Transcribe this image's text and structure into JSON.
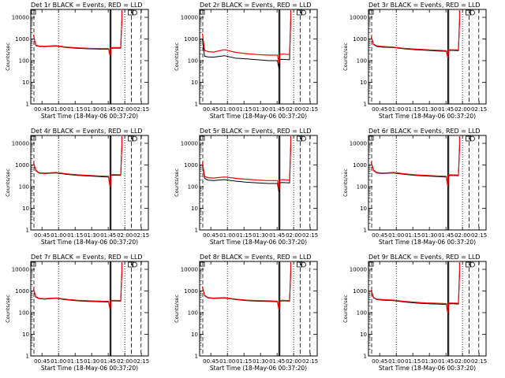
{
  "figure": {
    "x_tick_labels": [
      "00:45",
      "01:00",
      "01:15",
      "01:30",
      "01:45",
      "02:00",
      "02:15"
    ],
    "y_tick_labels": [
      "1",
      "10",
      "100",
      "1000",
      "10000"
    ],
    "xlabel": "Start Time (18-May-06 00:37:20)",
    "ylabel": "Counts/sec",
    "series_colors": {
      "events": "#000000",
      "lld": "#ff0000"
    }
  },
  "chart_data": [
    {
      "type": "line",
      "title": "Det 1r BLACK = Events, RED = LLD",
      "ylim": [
        1,
        10000
      ],
      "yscale": "log",
      "series": [
        {
          "name": "Events",
          "x_minutes": [
            0,
            2,
            5,
            10,
            20,
            30,
            40,
            50,
            60,
            68,
            69.5,
            70,
            72,
            79,
            80
          ],
          "values": [
            1500,
            500,
            450,
            440,
            470,
            400,
            370,
            350,
            340,
            340,
            150,
            370,
            380,
            380,
            7000
          ]
        },
        {
          "name": "LLD",
          "x_minutes": [
            0,
            2,
            5,
            10,
            20,
            30,
            40,
            50,
            60,
            68,
            69.5,
            70,
            72,
            79,
            80
          ],
          "values": [
            1500,
            520,
            470,
            460,
            490,
            420,
            390,
            370,
            360,
            360,
            160,
            390,
            400,
            400,
            8000
          ]
        }
      ]
    },
    {
      "type": "line",
      "title": "Det 2r BLACK = Events, RED = LLD",
      "ylim": [
        1,
        10000
      ],
      "yscale": "log",
      "series": [
        {
          "name": "Events",
          "x_minutes": [
            0,
            2,
            5,
            10,
            20,
            30,
            40,
            50,
            60,
            68,
            69.5,
            70,
            72,
            79,
            80
          ],
          "values": [
            1000,
            160,
            150,
            145,
            170,
            130,
            120,
            110,
            100,
            100,
            40,
            110,
            115,
            110,
            6000
          ]
        },
        {
          "name": "LLD",
          "x_minutes": [
            0,
            2,
            5,
            10,
            20,
            30,
            40,
            50,
            60,
            68,
            69.5,
            70,
            72,
            79,
            80
          ],
          "values": [
            1800,
            300,
            260,
            250,
            320,
            240,
            210,
            190,
            180,
            180,
            70,
            190,
            200,
            190,
            8000
          ]
        }
      ]
    },
    {
      "type": "line",
      "title": "Det 3r BLACK = Events, RED = LLD",
      "ylim": [
        1,
        10000
      ],
      "yscale": "log",
      "series": [
        {
          "name": "Events",
          "x_minutes": [
            0,
            2,
            5,
            10,
            20,
            30,
            40,
            50,
            60,
            68,
            69.5,
            70,
            72,
            79,
            80
          ],
          "values": [
            1200,
            550,
            450,
            420,
            400,
            350,
            320,
            300,
            280,
            270,
            120,
            290,
            300,
            290,
            6000
          ]
        },
        {
          "name": "LLD",
          "x_minutes": [
            0,
            2,
            5,
            10,
            20,
            30,
            40,
            50,
            60,
            68,
            69.5,
            70,
            72,
            79,
            80
          ],
          "values": [
            1300,
            580,
            480,
            450,
            420,
            370,
            340,
            320,
            300,
            290,
            130,
            310,
            320,
            310,
            8000
          ]
        }
      ]
    },
    {
      "type": "line",
      "title": "Det 4r BLACK = Events, RED = LLD",
      "ylim": [
        1,
        10000
      ],
      "yscale": "log",
      "series": [
        {
          "name": "Events",
          "x_minutes": [
            0,
            2,
            5,
            10,
            20,
            30,
            40,
            50,
            60,
            68,
            69.5,
            70,
            72,
            79,
            80
          ],
          "values": [
            1200,
            550,
            420,
            400,
            430,
            370,
            330,
            310,
            290,
            280,
            80,
            330,
            340,
            330,
            6000
          ]
        },
        {
          "name": "LLD",
          "x_minutes": [
            0,
            2,
            5,
            10,
            20,
            30,
            40,
            50,
            60,
            68,
            69.5,
            70,
            72,
            79,
            80
          ],
          "values": [
            1300,
            580,
            440,
            420,
            450,
            390,
            350,
            330,
            310,
            300,
            90,
            350,
            360,
            350,
            8000
          ]
        }
      ]
    },
    {
      "type": "line",
      "title": "Det 5r BLACK = Events, RED = LLD",
      "ylim": [
        1,
        10000
      ],
      "yscale": "log",
      "series": [
        {
          "name": "Events",
          "x_minutes": [
            0,
            2,
            5,
            10,
            20,
            30,
            40,
            50,
            60,
            68,
            69.5,
            70,
            72,
            79,
            80
          ],
          "values": [
            1000,
            240,
            200,
            190,
            210,
            180,
            160,
            150,
            140,
            140,
            50,
            150,
            155,
            150,
            6000
          ]
        },
        {
          "name": "LLD",
          "x_minutes": [
            0,
            2,
            5,
            10,
            20,
            30,
            40,
            50,
            60,
            68,
            69.5,
            70,
            72,
            79,
            80
          ],
          "values": [
            1300,
            300,
            260,
            250,
            280,
            240,
            220,
            200,
            190,
            190,
            70,
            200,
            210,
            200,
            8000
          ]
        }
      ]
    },
    {
      "type": "line",
      "title": "Det 6r BLACK = Events, RED = LLD",
      "ylim": [
        1,
        10000
      ],
      "yscale": "log",
      "series": [
        {
          "name": "Events",
          "x_minutes": [
            0,
            2,
            5,
            10,
            20,
            30,
            40,
            50,
            60,
            68,
            69.5,
            70,
            72,
            79,
            80
          ],
          "values": [
            1300,
            550,
            430,
            400,
            430,
            370,
            330,
            310,
            290,
            280,
            90,
            320,
            330,
            320,
            6000
          ]
        },
        {
          "name": "LLD",
          "x_minutes": [
            0,
            2,
            5,
            10,
            20,
            30,
            40,
            50,
            60,
            68,
            69.5,
            70,
            72,
            79,
            80
          ],
          "values": [
            1400,
            580,
            450,
            420,
            450,
            390,
            350,
            330,
            310,
            300,
            100,
            340,
            350,
            340,
            8000
          ]
        }
      ]
    },
    {
      "type": "line",
      "title": "Det 7r BLACK = Events, RED = LLD",
      "ylim": [
        1,
        10000
      ],
      "yscale": "log",
      "series": [
        {
          "name": "Events",
          "x_minutes": [
            0,
            2,
            5,
            10,
            20,
            30,
            40,
            50,
            60,
            68,
            69.5,
            70,
            72,
            79,
            80
          ],
          "values": [
            1200,
            520,
            440,
            420,
            460,
            390,
            350,
            330,
            320,
            310,
            130,
            340,
            350,
            340,
            6000
          ]
        },
        {
          "name": "LLD",
          "x_minutes": [
            0,
            2,
            5,
            10,
            20,
            30,
            40,
            50,
            60,
            68,
            69.5,
            70,
            72,
            79,
            80
          ],
          "values": [
            1300,
            550,
            460,
            440,
            480,
            410,
            370,
            350,
            340,
            330,
            140,
            360,
            370,
            360,
            8000
          ]
        }
      ]
    },
    {
      "type": "line",
      "title": "Det 8r BLACK = Events, RED = LLD",
      "ylim": [
        1,
        10000
      ],
      "yscale": "log",
      "series": [
        {
          "name": "Events",
          "x_minutes": [
            0,
            2,
            5,
            10,
            20,
            30,
            40,
            50,
            60,
            68,
            69.5,
            70,
            72,
            79,
            80
          ],
          "values": [
            1500,
            600,
            480,
            450,
            470,
            400,
            360,
            340,
            330,
            320,
            120,
            340,
            350,
            340,
            6000
          ]
        },
        {
          "name": "LLD",
          "x_minutes": [
            0,
            2,
            5,
            10,
            20,
            30,
            40,
            50,
            60,
            68,
            69.5,
            70,
            72,
            79,
            80
          ],
          "values": [
            1600,
            630,
            500,
            470,
            490,
            420,
            380,
            360,
            350,
            340,
            130,
            360,
            370,
            360,
            8000
          ]
        }
      ]
    },
    {
      "type": "line",
      "title": "Det 9r BLACK = Events, RED = LLD",
      "ylim": [
        1,
        10000
      ],
      "yscale": "log",
      "series": [
        {
          "name": "Events",
          "x_minutes": [
            0,
            2,
            5,
            10,
            20,
            30,
            40,
            50,
            60,
            68,
            69.5,
            70,
            72,
            79,
            80
          ],
          "values": [
            1000,
            480,
            400,
            380,
            360,
            310,
            280,
            260,
            250,
            240,
            80,
            250,
            260,
            250,
            6000
          ]
        },
        {
          "name": "LLD",
          "x_minutes": [
            0,
            2,
            5,
            10,
            20,
            30,
            40,
            50,
            60,
            68,
            69.5,
            70,
            72,
            79,
            80
          ],
          "values": [
            1100,
            500,
            420,
            400,
            380,
            330,
            300,
            280,
            270,
            260,
            90,
            270,
            280,
            270,
            8000
          ]
        }
      ]
    }
  ]
}
